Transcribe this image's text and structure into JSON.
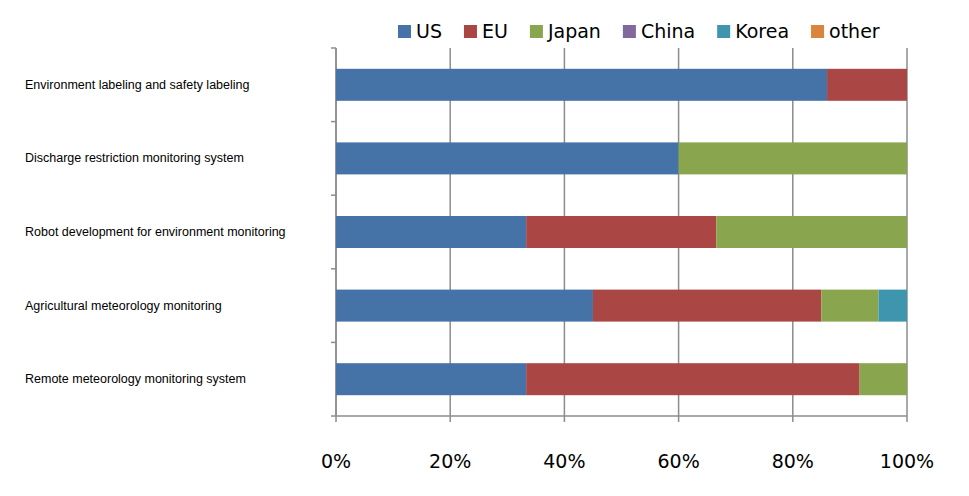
{
  "chart_data": {
    "type": "bar",
    "orientation": "horizontal",
    "stacked": true,
    "categories": [
      "Environment labeling and safety labeling",
      "Discharge restriction monitoring system",
      "Robot development  for environment monitoring",
      "Agricultural meteorology monitoring",
      "Remote meteorology monitoring system"
    ],
    "series": [
      {
        "name": "US",
        "color": "#4572a7",
        "values": [
          86,
          60,
          33.3,
          45,
          33.3
        ]
      },
      {
        "name": "EU",
        "color": "#aa4643",
        "values": [
          14,
          0,
          33.3,
          40,
          58.4
        ]
      },
      {
        "name": "Japan",
        "color": "#89a54e",
        "values": [
          0,
          40,
          33.4,
          10,
          8.3
        ]
      },
      {
        "name": "China",
        "color": "#80699b",
        "values": [
          0,
          0,
          0,
          0,
          0
        ]
      },
      {
        "name": "Korea",
        "color": "#3d96ae",
        "values": [
          0,
          0,
          0,
          5,
          0
        ]
      },
      {
        "name": "other",
        "color": "#db843d",
        "values": [
          0,
          0,
          0,
          0,
          0
        ]
      }
    ],
    "xlim": [
      0,
      100
    ],
    "xticks": [
      {
        "value": 0,
        "label": "0%"
      },
      {
        "value": 20,
        "label": "20%"
      },
      {
        "value": 40,
        "label": "40%"
      },
      {
        "value": 60,
        "label": "60%"
      },
      {
        "value": 80,
        "label": "80%"
      },
      {
        "value": 100,
        "label": "100%"
      }
    ],
    "grid": true,
    "legend": "top"
  }
}
